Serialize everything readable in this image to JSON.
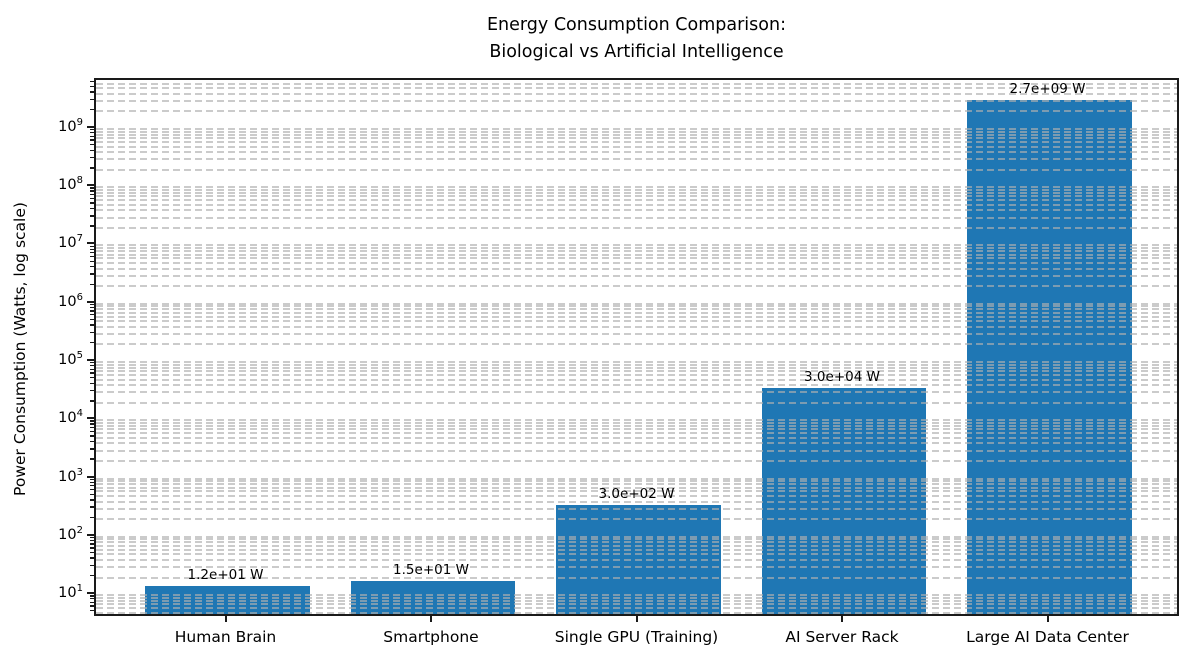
{
  "chart_data": {
    "type": "bar",
    "title_line1": "Energy Consumption Comparison:",
    "title_line2": "Biological vs Artificial Intelligence",
    "ylabel": "Power Consumption (Watts, log scale)",
    "xlabel": "",
    "yscale": "log",
    "categories": [
      "Human Brain",
      "Smartphone",
      "Single GPU (Training)",
      "AI Server Rack",
      "Large AI Data Center"
    ],
    "values": [
      12,
      15,
      300,
      30000,
      2700000000
    ],
    "bar_labels": [
      "1.2e+01 W",
      "1.5e+01 W",
      "3.0e+02 W",
      "3.0e+04 W",
      "2.7e+09 W"
    ],
    "value_unit": "W",
    "y_tick_exponents": [
      1,
      2,
      3,
      4,
      5,
      6,
      7,
      8,
      9
    ],
    "ylim_log10": [
      0.605,
      9.84
    ],
    "xlim_units": [
      -0.64,
      4.64
    ],
    "bar_width_units": 0.8,
    "bar_color": "#1f77b4",
    "grid": {
      "enabled": true,
      "style": "dashed",
      "which": "both",
      "color": "#c9c9c9"
    },
    "legend": "none"
  }
}
